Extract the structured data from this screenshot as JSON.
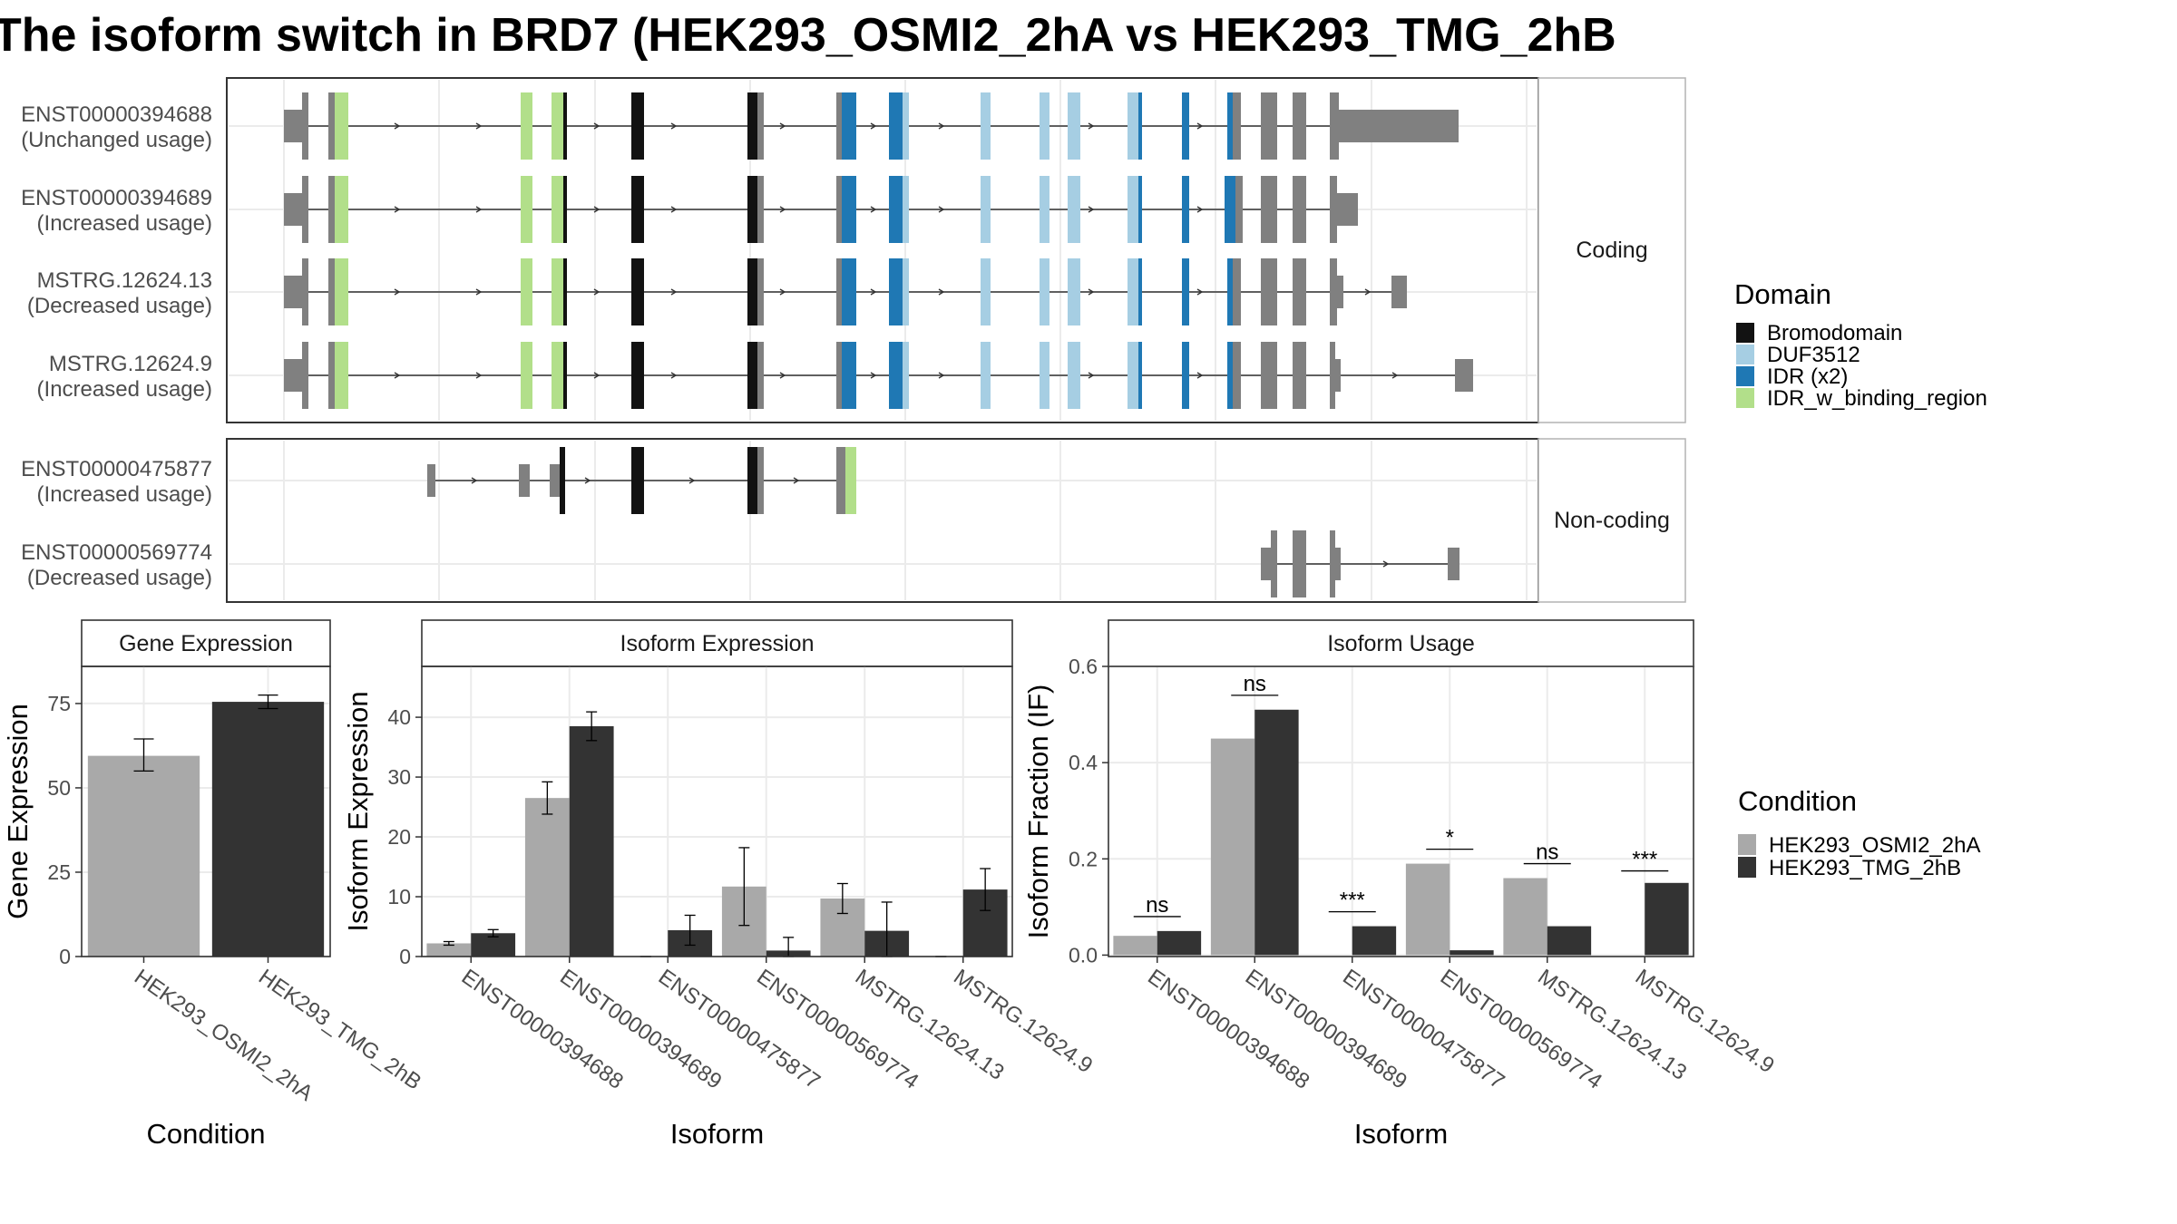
{
  "title": "The isoform switch in BRD7 (HEK293_OSMI2_2hA vs HEK293_TMG_2hB",
  "colors": {
    "Bromodomain": "#121212",
    "DUF3512": "#a6cee3",
    "IDR (x2)": "#1f78b4",
    "IDR_w_binding_region": "#b2df8a",
    "exon": "#808080",
    "cond_a": "#a9a9a9",
    "cond_b": "#333333",
    "grid": "#ebebeb",
    "panel_border": "#333333",
    "strip_border": "#b3b3b3"
  },
  "structure": {
    "coding_label": "Coding",
    "noncoding_label": "Non-coding",
    "transcripts": [
      {
        "id": "ENST00000394688",
        "status": "(Unchanged usage)",
        "group": "coding"
      },
      {
        "id": "ENST00000394689",
        "status": "(Increased usage)",
        "group": "coding"
      },
      {
        "id": "MSTRG.12624.13",
        "status": "(Decreased usage)",
        "group": "coding"
      },
      {
        "id": "MSTRG.12624.9",
        "status": "(Increased usage)",
        "group": "coding"
      },
      {
        "id": "ENST00000475877",
        "status": "(Increased usage)",
        "group": "noncoding"
      },
      {
        "id": "ENST00000569774",
        "status": "(Decreased usage)",
        "group": "noncoding"
      }
    ]
  },
  "domain_legend": {
    "title": "Domain",
    "entries": [
      "Bromodomain",
      "DUF3512",
      "IDR (x2)",
      "IDR_w_binding_region"
    ]
  },
  "condition_legend": {
    "title": "Condition",
    "entries": [
      "HEK293_OSMI2_2hA",
      "HEK293_TMG_2hB"
    ]
  },
  "chart_data": [
    {
      "type": "bar",
      "panel_title": "Gene Expression",
      "xlabel": "Condition",
      "ylabel": "Gene Expression",
      "categories": [
        "HEK293_OSMI2_2hA",
        "HEK293_TMG_2hB"
      ],
      "values": [
        59.5,
        75.5
      ],
      "errors": [
        [
          55,
          64.5
        ],
        [
          73.5,
          77.5
        ]
      ],
      "ylim": [
        0,
        86
      ],
      "yticks": [
        0,
        25,
        50,
        75
      ]
    },
    {
      "type": "bar",
      "panel_title": "Isoform Expression",
      "xlabel": "Isoform",
      "ylabel": "Isoform Expression",
      "categories": [
        "ENST00000394688",
        "ENST00000394689",
        "ENST00000475877",
        "ENST00000569774",
        "MSTRG.12624.13",
        "MSTRG.12624.9"
      ],
      "series": [
        {
          "name": "HEK293_OSMI2_2hA",
          "values": [
            2.2,
            26.5,
            0,
            11.7,
            9.7,
            0
          ],
          "errors": [
            [
              1.9,
              2.5
            ],
            [
              23.8,
              29.2
            ],
            [
              0,
              0
            ],
            [
              5.2,
              18.2
            ],
            [
              7.2,
              12.2
            ],
            [
              0,
              0
            ]
          ]
        },
        {
          "name": "HEK293_TMG_2hB",
          "values": [
            3.9,
            38.5,
            4.4,
            1.0,
            4.3,
            11.2
          ],
          "errors": [
            [
              3.3,
              4.5
            ],
            [
              36.1,
              40.9
            ],
            [
              1.9,
              6.9
            ],
            [
              0,
              3.2
            ],
            [
              0,
              9.1
            ],
            [
              7.7,
              14.7
            ]
          ]
        }
      ],
      "ylim": [
        0,
        48.5
      ],
      "yticks": [
        0,
        10,
        20,
        30,
        40
      ]
    },
    {
      "type": "bar",
      "panel_title": "Isoform Usage",
      "xlabel": "Isoform",
      "ylabel": "Isoform Fraction (IF)",
      "categories": [
        "ENST00000394688",
        "ENST00000394689",
        "ENST00000475877",
        "ENST00000569774",
        "MSTRG.12624.13",
        "MSTRG.12624.9"
      ],
      "series": [
        {
          "name": "HEK293_OSMI2_2hA",
          "values": [
            0.04,
            0.45,
            0.0,
            0.19,
            0.16,
            0.0
          ]
        },
        {
          "name": "HEK293_TMG_2hB",
          "values": [
            0.05,
            0.51,
            0.06,
            0.01,
            0.06,
            0.15
          ]
        }
      ],
      "significance": [
        "ns",
        "ns",
        "***",
        "*",
        "ns",
        "***"
      ],
      "sig_heights": [
        0.08,
        0.54,
        0.09,
        0.22,
        0.19,
        0.175
      ],
      "ylim": [
        -0.003,
        0.6
      ],
      "yticks": [
        "0.0",
        "0.2",
        "0.4",
        "0.6"
      ]
    }
  ]
}
